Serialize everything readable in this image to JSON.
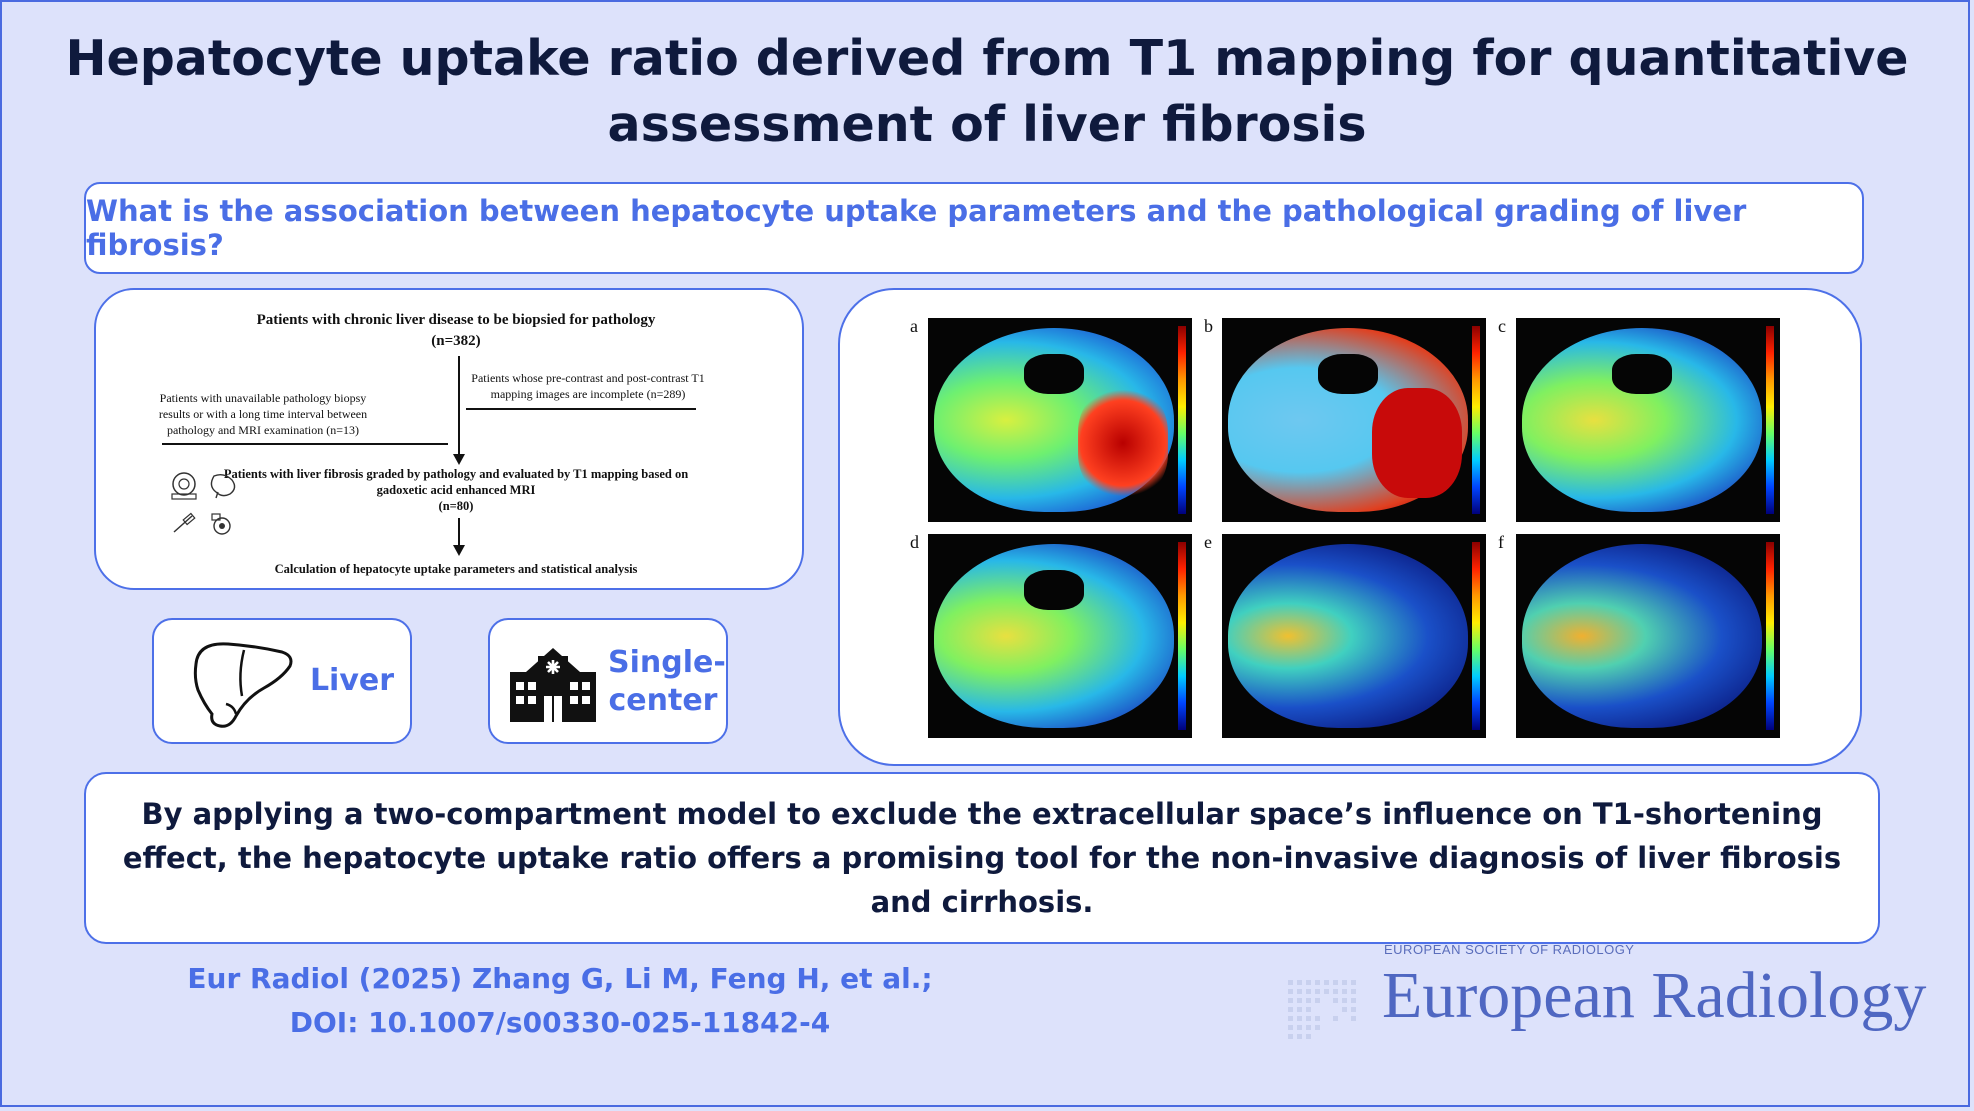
{
  "title": "Hepatocyte uptake ratio derived from T1 mapping for quantitative assessment of liver fibrosis",
  "question": "What is the association between hepatocyte uptake parameters and the pathological grading of liver fibrosis?",
  "flowchart": {
    "step1": "Patients with chronic liver disease to be biopsied for pathology",
    "step1_n": "(n=382)",
    "exclusion_left": "Patients with unavailable pathology biopsy results or with a long time interval between pathology and MRI examination (n=13)",
    "exclusion_right": "Patients whose pre-contrast and post-contrast T1 mapping images are incomplete (n=289)",
    "step2": "Patients with liver fibrosis graded by pathology and evaluated by T1 mapping based on gadoxetic acid enhanced MRI",
    "step2_n": "(n=80)",
    "step3": "Calculation of hepatocyte uptake parameters and statistical analysis"
  },
  "tiles": {
    "liver": {
      "label": "Liver",
      "icon": "liver-icon"
    },
    "center": {
      "label": "Single-center",
      "label_line1": "Single-",
      "label_line2": "center",
      "icon": "hospital-icon"
    }
  },
  "image_panels": [
    "a",
    "b",
    "c",
    "d",
    "e",
    "f"
  ],
  "conclusion": "By applying a two-compartment model to exclude the extracellular space’s influence on T1-shortening effect, the hepatocyte uptake ratio offers a promising tool for the non-invasive diagnosis of liver fibrosis and cirrhosis.",
  "citation": {
    "line1": "Eur Radiol (2025) Zhang G, Li M, Feng H, et al.;",
    "line2": "DOI: 10.1007/s00330-025-11842-4"
  },
  "logo": {
    "society": "EUROPEAN SOCIETY OF RADIOLOGY",
    "journal": "European Radiology"
  },
  "colors": {
    "background": "#dde2fb",
    "accent": "#4a6ee6",
    "dark_text": "#0f1a3d"
  }
}
